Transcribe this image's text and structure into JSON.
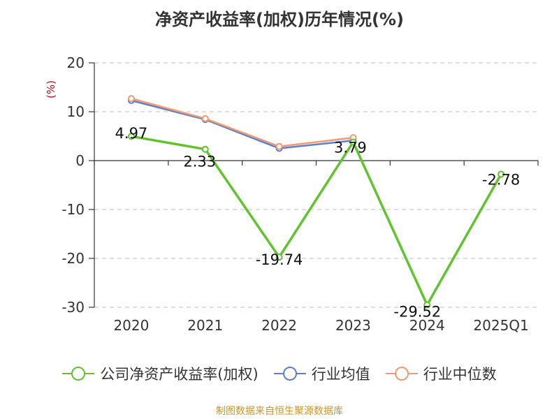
{
  "title": "净资产收益率(加权)历年情况(%)",
  "source": "制图数据来自恒生聚源数据库",
  "chart_data": {
    "type": "line",
    "title": "净资产收益率(加权)历年情况(%)",
    "ylabel": "(%)",
    "categories": [
      "2020",
      "2021",
      "2022",
      "2023",
      "2024",
      "2025Q1"
    ],
    "ylim": [
      -30,
      20
    ],
    "yticks": [
      20,
      10,
      0,
      -10,
      -20,
      -30
    ],
    "grid": "horizontal dashed",
    "legend_position": "bottom",
    "series": [
      {
        "name": "公司净资产收益率(加权)",
        "color": "#5fc42d",
        "values": [
          4.97,
          2.33,
          -19.74,
          3.79,
          -29.52,
          -2.78
        ],
        "labels": [
          "4.97",
          "2.33",
          "-19.74",
          "3.79",
          "-29.52",
          "-2.78"
        ]
      },
      {
        "name": "行业均值",
        "color": "#5b7fd6",
        "values": [
          12.3,
          8.4,
          2.5,
          4.1,
          null,
          null
        ]
      },
      {
        "name": "行业中位数",
        "color": "#f59a6a",
        "values": [
          12.7,
          8.6,
          2.9,
          4.7,
          null,
          null
        ]
      }
    ]
  }
}
